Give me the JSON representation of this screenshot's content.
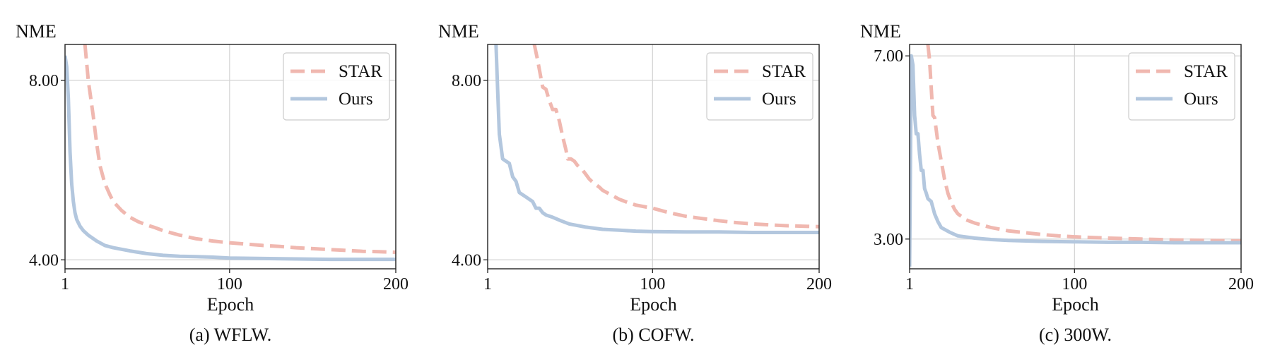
{
  "chart_data": [
    {
      "type": "line",
      "caption": "(a) WFLW.",
      "ylabel": "NME",
      "xlabel": "Epoch",
      "xlim": [
        1,
        200
      ],
      "ylim": [
        3.8,
        8.8
      ],
      "xticks": [
        1,
        100,
        200
      ],
      "xtick_labels": [
        "1",
        "100",
        "200"
      ],
      "yticks": [
        4.0,
        8.0
      ],
      "ytick_labels": [
        "4.00",
        "8.00"
      ],
      "grid": true,
      "legend": "top-right",
      "series": [
        {
          "name": "STAR",
          "color": "#f0b8b0",
          "style": "dashed",
          "x": [
            13,
            15,
            18,
            20,
            22,
            25,
            28,
            30,
            35,
            40,
            45,
            50,
            55,
            60,
            70,
            80,
            90,
            100,
            110,
            120,
            130,
            140,
            150,
            160,
            170,
            180,
            190,
            200
          ],
          "y": [
            8.8,
            8.0,
            7.2,
            6.6,
            6.1,
            5.7,
            5.45,
            5.3,
            5.1,
            4.95,
            4.85,
            4.78,
            4.72,
            4.65,
            4.55,
            4.47,
            4.42,
            4.38,
            4.35,
            4.32,
            4.3,
            4.27,
            4.25,
            4.23,
            4.21,
            4.19,
            4.18,
            4.17
          ]
        },
        {
          "name": "Ours",
          "color": "#b3c7de",
          "style": "solid",
          "x": [
            1,
            2,
            3,
            4,
            5,
            6,
            7,
            8,
            10,
            12,
            15,
            20,
            25,
            30,
            40,
            50,
            60,
            70,
            80,
            90,
            100,
            120,
            140,
            160,
            180,
            200
          ],
          "y": [
            8.55,
            8.3,
            7.6,
            6.4,
            5.7,
            5.3,
            5.05,
            4.9,
            4.75,
            4.65,
            4.55,
            4.42,
            4.32,
            4.27,
            4.2,
            4.14,
            4.1,
            4.08,
            4.07,
            4.06,
            4.04,
            4.03,
            4.02,
            4.01,
            4.01,
            4.01
          ]
        }
      ]
    },
    {
      "type": "line",
      "caption": "(b) COFW.",
      "ylabel": "NME",
      "xlabel": "Epoch",
      "xlim": [
        1,
        200
      ],
      "ylim": [
        3.8,
        8.8
      ],
      "xticks": [
        1,
        100,
        200
      ],
      "xtick_labels": [
        "1",
        "100",
        "200"
      ],
      "yticks": [
        4.0,
        8.0
      ],
      "ytick_labels": [
        "4.00",
        "8.00"
      ],
      "grid": true,
      "legend": "top-right",
      "series": [
        {
          "name": "STAR",
          "color": "#f0b8b0",
          "style": "dashed",
          "x": [
            29,
            31,
            33,
            34,
            36,
            38,
            40,
            42,
            44,
            46,
            48,
            49,
            51,
            53,
            55,
            58,
            60,
            62,
            65,
            68,
            70,
            75,
            80,
            85,
            90,
            100,
            110,
            120,
            130,
            140,
            150,
            160,
            170,
            180,
            190,
            200
          ],
          "y": [
            8.8,
            8.45,
            8.05,
            7.85,
            7.8,
            7.55,
            7.35,
            7.35,
            7.1,
            6.75,
            6.45,
            6.25,
            6.25,
            6.2,
            6.1,
            6.0,
            5.9,
            5.8,
            5.7,
            5.62,
            5.55,
            5.45,
            5.35,
            5.28,
            5.22,
            5.15,
            5.05,
            4.97,
            4.92,
            4.87,
            4.83,
            4.8,
            4.78,
            4.76,
            4.75,
            4.74
          ]
        },
        {
          "name": "Ours",
          "color": "#b3c7de",
          "style": "solid",
          "x": [
            6,
            7,
            8,
            10,
            12,
            14,
            16,
            18,
            20,
            22,
            24,
            26,
            28,
            30,
            32,
            34,
            36,
            40,
            45,
            50,
            60,
            70,
            80,
            90,
            100,
            120,
            140,
            160,
            180,
            200
          ],
          "y": [
            8.8,
            7.8,
            6.8,
            6.25,
            6.2,
            6.15,
            5.85,
            5.75,
            5.5,
            5.45,
            5.4,
            5.35,
            5.3,
            5.15,
            5.15,
            5.05,
            5.0,
            4.95,
            4.87,
            4.8,
            4.73,
            4.68,
            4.66,
            4.64,
            4.63,
            4.62,
            4.62,
            4.61,
            4.61,
            4.61
          ]
        }
      ]
    },
    {
      "type": "line",
      "caption": "(c) 300W.",
      "ylabel": "NME",
      "xlabel": "Epoch",
      "xlim": [
        1,
        200
      ],
      "ylim": [
        2.35,
        7.25
      ],
      "xticks": [
        1,
        100,
        200
      ],
      "xtick_labels": [
        "1",
        "100",
        "200"
      ],
      "yticks": [
        3.0,
        7.0
      ],
      "ytick_labels": [
        "3.00",
        "7.00"
      ],
      "grid": true,
      "legend": "top-right",
      "series": [
        {
          "name": "STAR",
          "color": "#f0b8b0",
          "style": "dashed",
          "x": [
            12,
            13,
            14,
            15,
            16,
            18,
            20,
            22,
            24,
            26,
            28,
            30,
            35,
            40,
            50,
            60,
            70,
            80,
            90,
            100,
            120,
            140,
            160,
            180,
            200
          ],
          "y": [
            7.25,
            6.9,
            6.3,
            5.7,
            5.65,
            5.1,
            4.7,
            4.3,
            4.0,
            3.8,
            3.65,
            3.55,
            3.42,
            3.35,
            3.25,
            3.18,
            3.14,
            3.1,
            3.07,
            3.05,
            3.02,
            3.0,
            2.98,
            2.97,
            2.96
          ]
        },
        {
          "name": "Ours",
          "color": "#b3c7de",
          "style": "solid",
          "x": [
            1,
            2,
            3,
            4,
            5,
            6,
            7,
            8,
            9,
            10,
            11,
            12,
            14,
            16,
            18,
            20,
            25,
            30,
            40,
            50,
            60,
            80,
            100,
            120,
            140,
            160,
            180,
            200
          ],
          "y": [
            2.4,
            7.0,
            6.8,
            5.7,
            5.3,
            5.3,
            4.85,
            4.5,
            4.5,
            4.1,
            4.0,
            3.88,
            3.82,
            3.55,
            3.38,
            3.25,
            3.15,
            3.07,
            3.02,
            2.99,
            2.97,
            2.95,
            2.94,
            2.93,
            2.93,
            2.92,
            2.92,
            2.92
          ]
        }
      ]
    }
  ]
}
